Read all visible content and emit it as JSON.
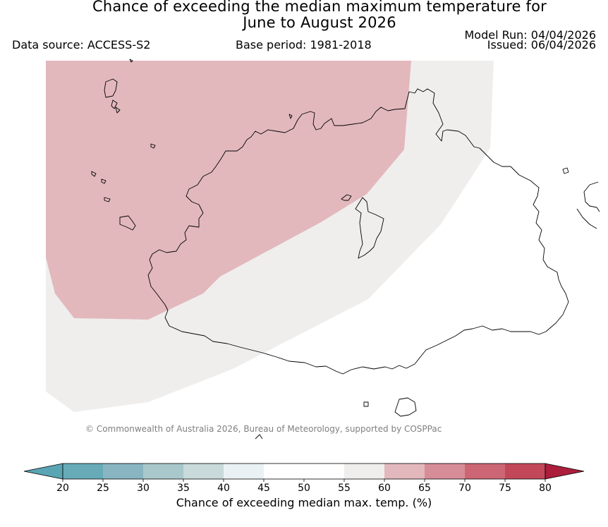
{
  "title": {
    "line1": "Chance of exceeding the median maximum temperature for",
    "line2": "June to August 2026"
  },
  "data_source": "Data source: ACCESS-S2",
  "base_period": "Base period: 1981-2018",
  "model_run": "Model Run: 04/04/2026",
  "issued": "Issued: 06/04/2026",
  "copyright": "© Commonwealth of Australia 2026, Bureau of Meteorology, supported by COSPPac",
  "map_regions": [
    {
      "name": "60-65% chance",
      "color": "#e2b8bd"
    },
    {
      "name": "55-60% chance",
      "color": "#efeeed"
    }
  ],
  "coastline_color": "#000000",
  "colorbar": {
    "label": "Chance of exceeding median max. temp. (%)",
    "ticks": [
      "20",
      "25",
      "30",
      "35",
      "40",
      "45",
      "50",
      "55",
      "60",
      "65",
      "70",
      "75",
      "80"
    ],
    "under_color": "#5aa5b4",
    "over_color": "#ab1e3c",
    "colors": [
      "#67aab8",
      "#88b5c1",
      "#a8c8cc",
      "#c9dadb",
      "#eaf1f4",
      "#ffffff",
      "#ffffff",
      "#efeeed",
      "#e2b8bd",
      "#d68d97",
      "#cc6675",
      "#c24859"
    ]
  }
}
